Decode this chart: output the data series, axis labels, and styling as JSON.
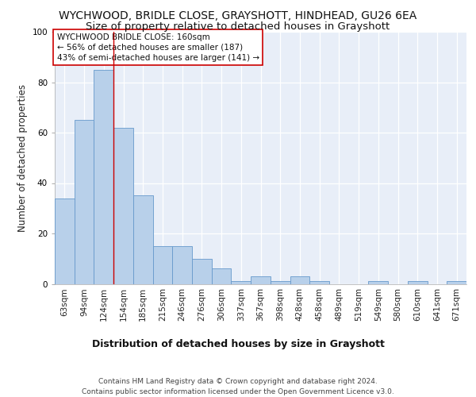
{
  "title": "WYCHWOOD, BRIDLE CLOSE, GRAYSHOTT, HINDHEAD, GU26 6EA",
  "subtitle": "Size of property relative to detached houses in Grayshott",
  "xlabel": "Distribution of detached houses by size in Grayshott",
  "ylabel": "Number of detached properties",
  "bar_values": [
    34,
    65,
    85,
    62,
    35,
    15,
    15,
    10,
    6,
    1,
    3,
    1,
    3,
    1,
    0,
    0,
    1,
    0,
    1,
    0,
    1
  ],
  "bar_labels": [
    "63sqm",
    "94sqm",
    "124sqm",
    "154sqm",
    "185sqm",
    "215sqm",
    "246sqm",
    "276sqm",
    "306sqm",
    "337sqm",
    "367sqm",
    "398sqm",
    "428sqm",
    "458sqm",
    "489sqm",
    "519sqm",
    "549sqm",
    "580sqm",
    "610sqm",
    "641sqm",
    "671sqm"
  ],
  "bar_color": "#b8d0ea",
  "bar_edge_color": "#6699cc",
  "annotation_box_text": "WYCHWOOD BRIDLE CLOSE: 160sqm\n← 56% of detached houses are smaller (187)\n43% of semi-detached houses are larger (141) →",
  "vline_x": 2.5,
  "vline_color": "#cc0000",
  "ylim": [
    0,
    100
  ],
  "yticks": [
    0,
    20,
    40,
    60,
    80,
    100
  ],
  "footer_line1": "Contains HM Land Registry data © Crown copyright and database right 2024.",
  "footer_line2": "Contains public sector information licensed under the Open Government Licence v3.0.",
  "background_color": "#e8eef8",
  "title_fontsize": 10,
  "subtitle_fontsize": 9.5,
  "annotation_fontsize": 7.5,
  "ylabel_fontsize": 8.5,
  "xlabel_fontsize": 9,
  "tick_fontsize": 7.5,
  "footer_fontsize": 6.5
}
